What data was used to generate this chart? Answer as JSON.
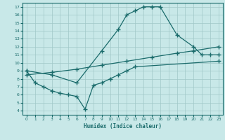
{
  "xlabel": "Humidex (Indice chaleur)",
  "background_color": "#c8e8e8",
  "grid_color": "#a0c8c8",
  "line_color": "#1a6b6b",
  "xlim": [
    -0.5,
    23.5
  ],
  "ylim": [
    3.5,
    17.5
  ],
  "xticks": [
    0,
    1,
    2,
    3,
    4,
    5,
    6,
    7,
    8,
    9,
    10,
    11,
    12,
    13,
    14,
    15,
    16,
    17,
    18,
    19,
    20,
    21,
    22,
    23
  ],
  "yticks": [
    4,
    5,
    6,
    7,
    8,
    9,
    10,
    11,
    12,
    13,
    14,
    15,
    16,
    17
  ],
  "curve_main_x": [
    0,
    3,
    6,
    9,
    11,
    12,
    13,
    14,
    15,
    16,
    18,
    20,
    21,
    22,
    23
  ],
  "curve_main_y": [
    9.0,
    8.5,
    7.5,
    11.5,
    14.2,
    16.0,
    16.5,
    17.0,
    17.0,
    17.0,
    13.5,
    12.0,
    11.0,
    11.0,
    11.0
  ],
  "curve_upper_x": [
    0,
    3,
    6,
    9,
    12,
    15,
    18,
    20,
    23
  ],
  "curve_upper_y": [
    8.5,
    8.8,
    9.2,
    9.7,
    10.2,
    10.7,
    11.2,
    11.5,
    12.0
  ],
  "curve_lower_x": [
    0,
    1,
    2,
    3,
    4,
    5,
    6,
    7,
    8,
    9,
    10,
    11,
    12,
    13,
    23
  ],
  "curve_lower_y": [
    9.0,
    7.5,
    7.0,
    6.5,
    6.2,
    6.0,
    5.8,
    4.2,
    7.2,
    7.5,
    8.0,
    8.5,
    9.0,
    9.5,
    10.2
  ]
}
